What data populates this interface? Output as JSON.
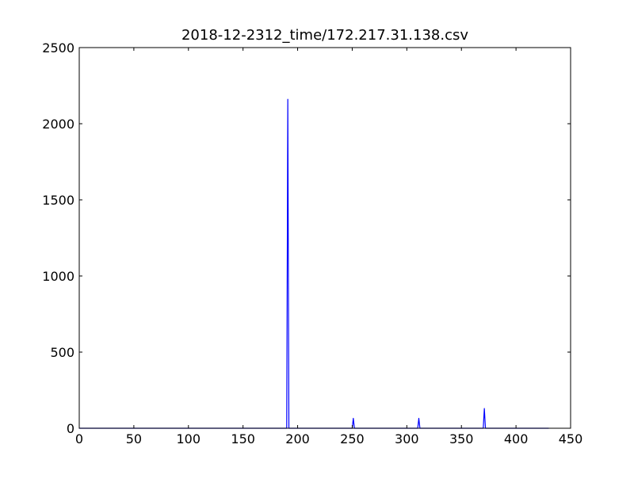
{
  "chart_data": {
    "type": "line",
    "title": "2018-12-2312_time/172.217.31.138.csv",
    "xlabel": "",
    "ylabel": "",
    "xlim": [
      0,
      450
    ],
    "ylim": [
      0,
      2500
    ],
    "xticks": [
      0,
      50,
      100,
      150,
      200,
      250,
      300,
      350,
      400,
      450
    ],
    "yticks": [
      0,
      500,
      1000,
      1500,
      2000,
      2500
    ],
    "grid": false,
    "line_color": "#0000ff",
    "series": [
      {
        "x": [
          0,
          189,
          190,
          191,
          192,
          193,
          249,
          250,
          251,
          252,
          309,
          310,
          311,
          312,
          369,
          370,
          371,
          372,
          430
        ],
        "y": [
          0,
          0,
          0,
          2160,
          0,
          0,
          0,
          0,
          65,
          0,
          0,
          0,
          65,
          0,
          0,
          0,
          130,
          0,
          0
        ]
      }
    ]
  }
}
